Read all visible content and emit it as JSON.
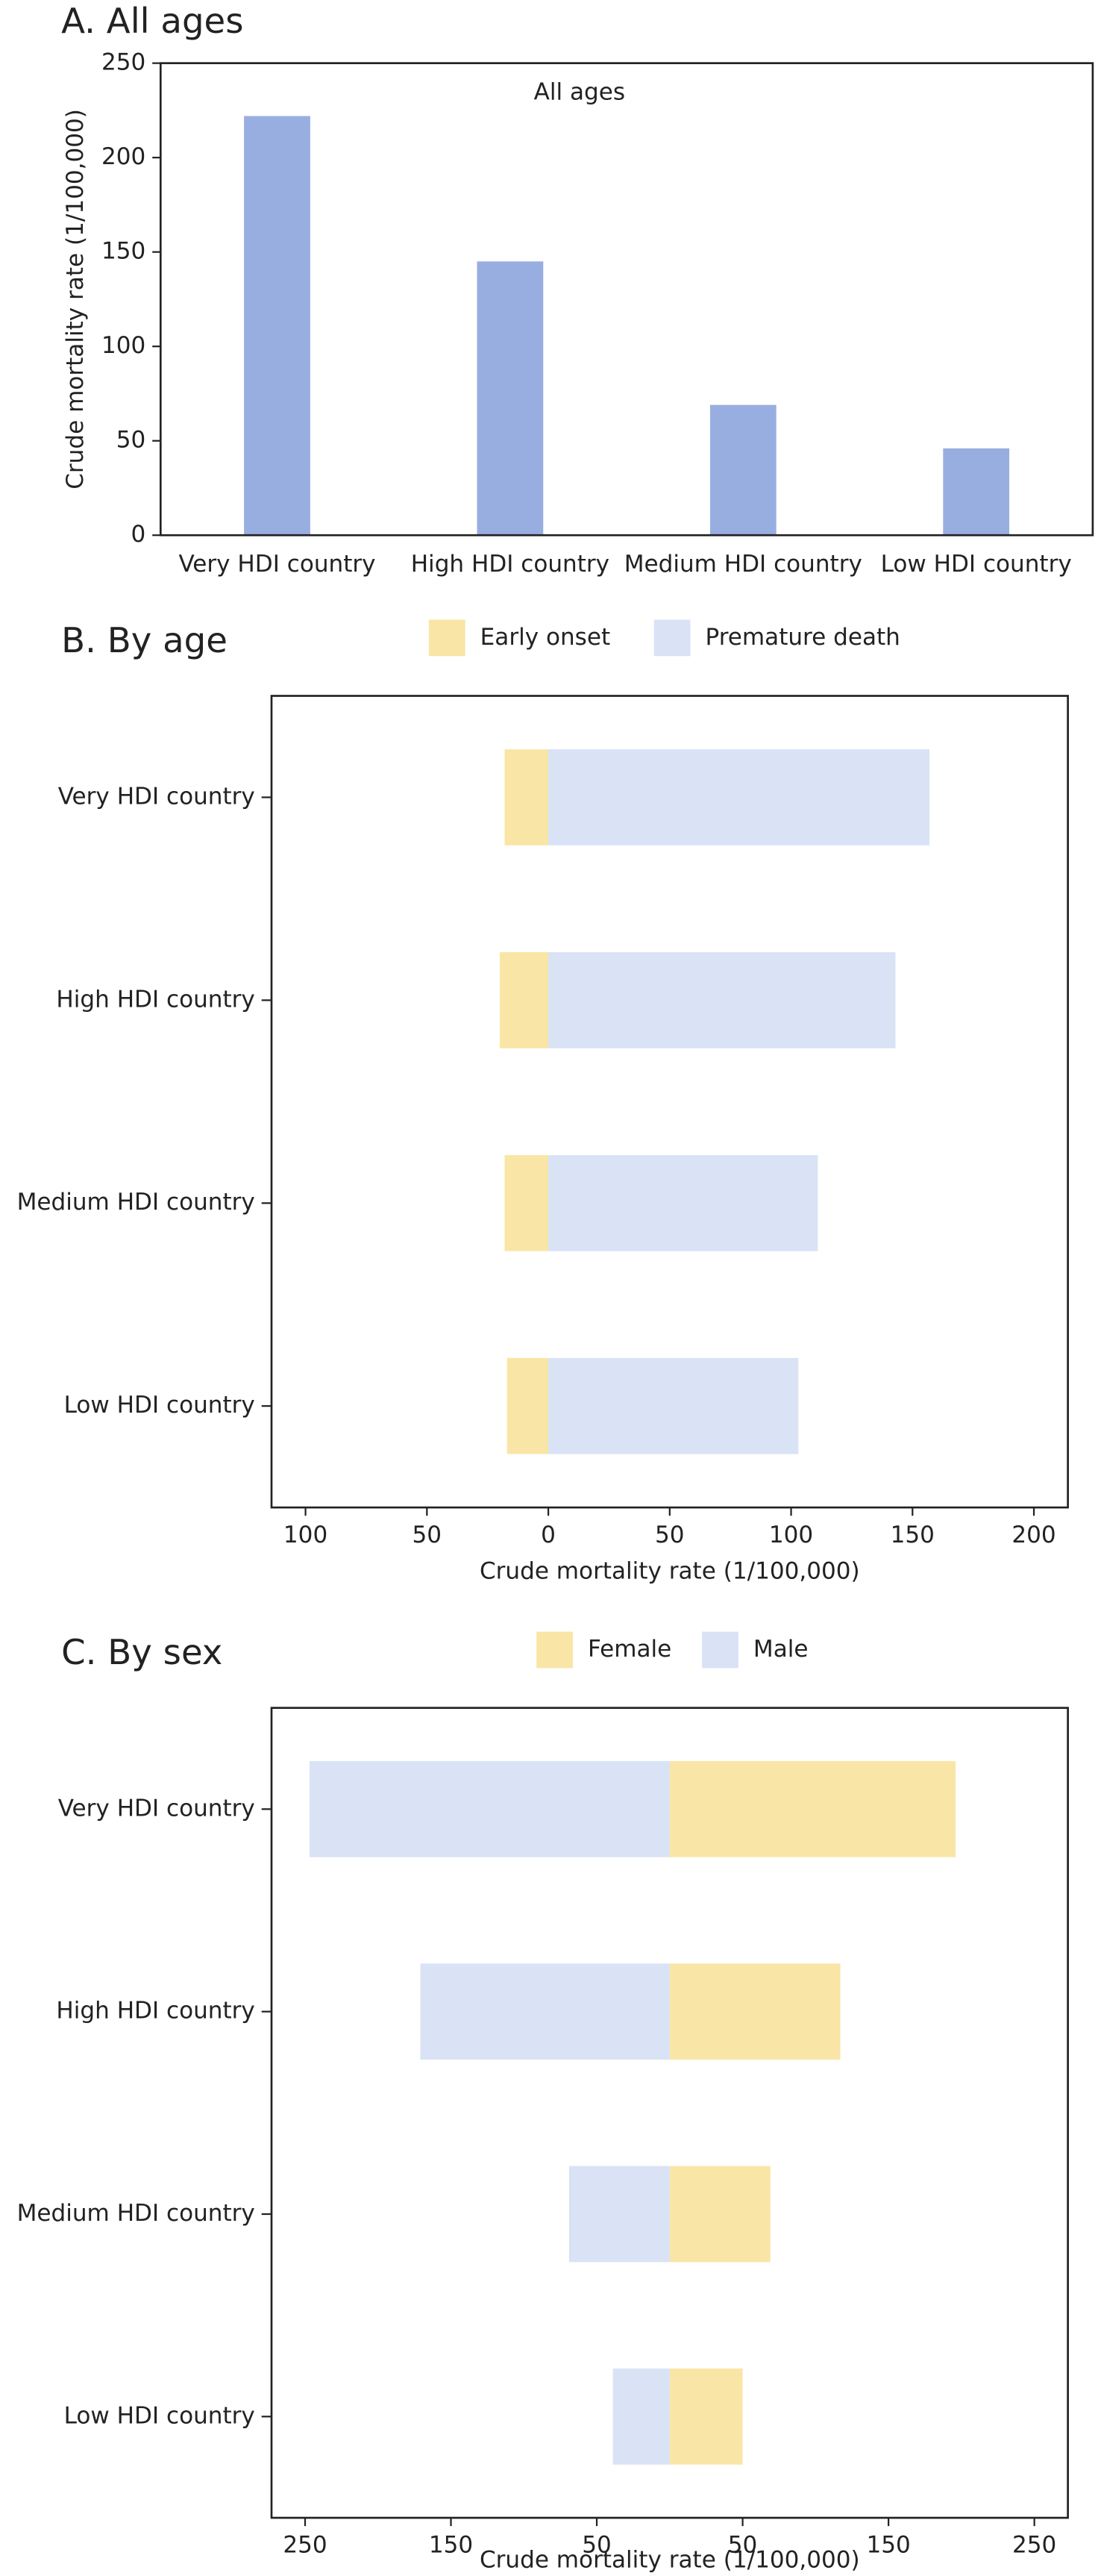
{
  "chart_data": [
    {
      "type": "bar",
      "panel_title": "A. All ages",
      "annotation": "All ages",
      "y_label": "Crude mortality rate (1/100,000)",
      "categories": [
        "Very HDI country",
        "High HDI country",
        "Medium HDI country",
        "Low HDI country"
      ],
      "values": [
        222,
        145,
        69,
        46
      ],
      "color": "#99aee0",
      "ylim": [
        0,
        250
      ],
      "yticks": [
        0,
        50,
        100,
        150,
        200,
        250
      ],
      "grid": false
    },
    {
      "type": "hbar_diverging",
      "panel_title": "B. By age",
      "x_label": "Crude mortality rate (1/100,000)",
      "categories": [
        "Very HDI country",
        "High HDI country",
        "Medium HDI country",
        "Low HDI country"
      ],
      "series": [
        {
          "name": "Early onset",
          "color": "#f9e6a6",
          "values": [
            -18,
            -20,
            -18,
            -17
          ]
        },
        {
          "name": "Premature death",
          "color": "#d9e3f5",
          "values": [
            157,
            143,
            111,
            103
          ]
        }
      ],
      "xlim": [
        -114,
        214
      ],
      "xticks": [
        {
          "value": -100,
          "label": "100"
        },
        {
          "value": -50,
          "label": "50"
        },
        0,
        50,
        100,
        150,
        200
      ],
      "legend": "top",
      "grid": false
    },
    {
      "type": "hbar_diverging",
      "panel_title": "C. By sex",
      "x_label": "Crude mortality rate (1/100,000)",
      "categories": [
        "Very HDI country",
        "High HDI country",
        "Medium HDI country",
        "Low HDI country"
      ],
      "series": [
        {
          "name": "Female",
          "color": "#f9e6a6",
          "values": [
            196,
            117,
            69,
            50
          ]
        },
        {
          "name": "Male",
          "color": "#d9e3f5",
          "values": [
            -247,
            -171,
            -69,
            -39
          ]
        }
      ],
      "xlim": [
        -273,
        273
      ],
      "xticks": [
        {
          "value": -250,
          "label": "250"
        },
        {
          "value": -150,
          "label": "150"
        },
        {
          "value": -50,
          "label": "50"
        },
        50,
        150,
        250
      ],
      "legend": "top",
      "grid": false
    }
  ]
}
